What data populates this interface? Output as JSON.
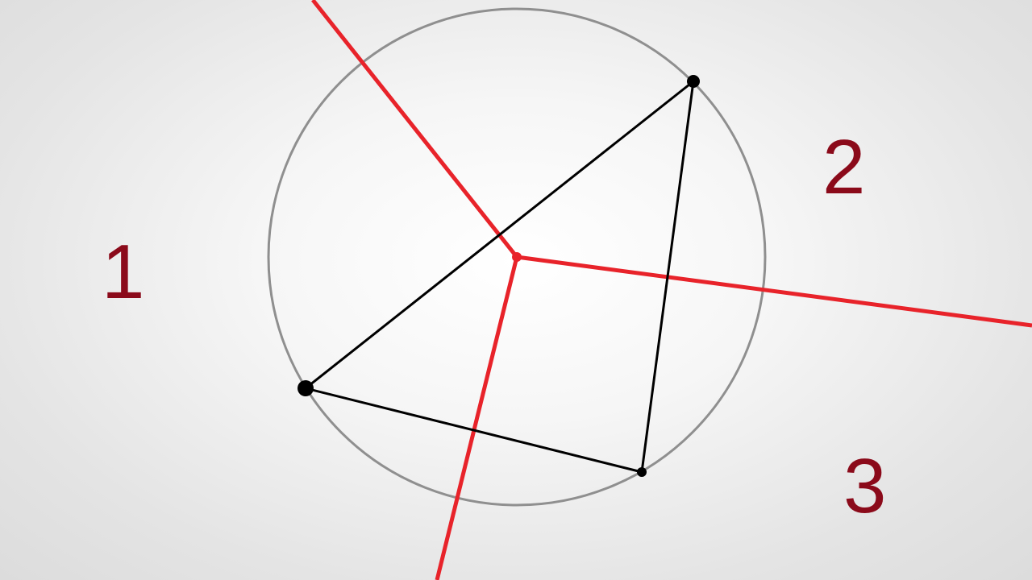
{
  "diagram": {
    "regions": [
      {
        "label": "1"
      },
      {
        "label": "2"
      },
      {
        "label": "3"
      }
    ]
  },
  "colors": {
    "circle": "#8f8f8f",
    "triangle": "#000000",
    "bisectors": "#e8232a",
    "labels": "#8b0a1a"
  }
}
